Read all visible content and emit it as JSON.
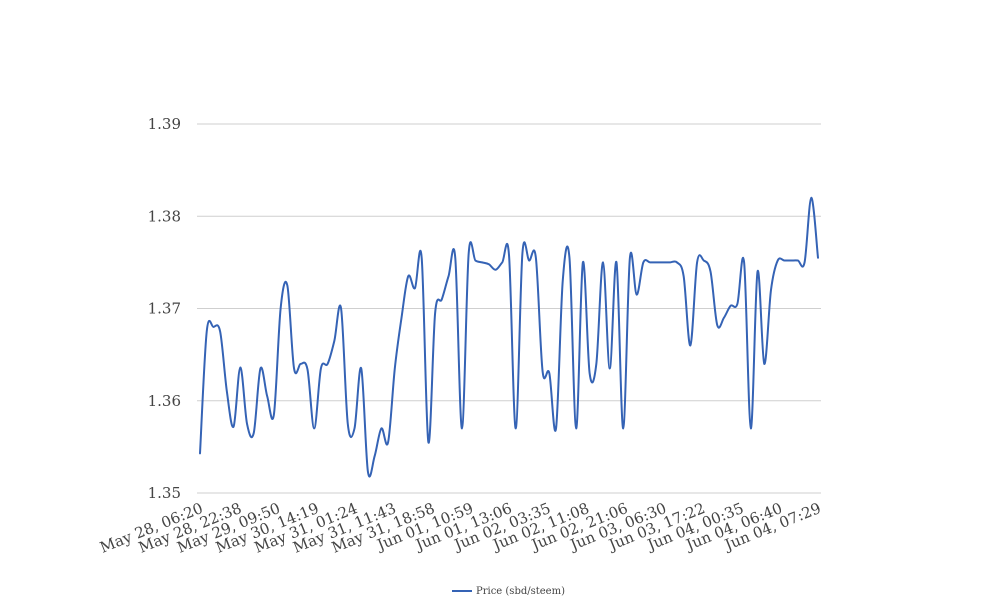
{
  "chart_data": {
    "type": "line",
    "title": "",
    "xlabel": "",
    "ylabel": "",
    "ylim": [
      1.35,
      1.39
    ],
    "y_ticks": [
      "1.35",
      "1.36",
      "1.37",
      "1.38",
      "1.39"
    ],
    "y_tick_values": [
      1.35,
      1.36,
      1.37,
      1.38,
      1.39
    ],
    "x_tick_labels": [
      "May 28, 06:20",
      "May 28, 22:38",
      "May 29, 09:50",
      "May 30, 14:19",
      "May 31, 01:24",
      "May 31, 11:43",
      "May 31, 18:58",
      "Jun 01, 10:59",
      "Jun 01, 13:06",
      "Jun 02, 03:35",
      "Jun 02, 11:08",
      "Jun 02, 21:06",
      "Jun 03, 06:30",
      "Jun 03, 17:22",
      "Jun 04, 00:35",
      "Jun 04, 06:40",
      "Jun 04, 07:29"
    ],
    "grid": true,
    "legend_position": "bottom",
    "colors": {
      "line": "#3563b5",
      "grid": "#cfcfcf",
      "text": "#444444"
    },
    "series": [
      {
        "name": "Price (sbd/steem)",
        "values": [
          1.3543,
          1.3675,
          1.368,
          1.3675,
          1.361,
          1.3572,
          1.3636,
          1.3575,
          1.3565,
          1.3635,
          1.3605,
          1.3585,
          1.37,
          1.3725,
          1.3635,
          1.364,
          1.3634,
          1.357,
          1.3635,
          1.364,
          1.3665,
          1.37,
          1.3575,
          1.357,
          1.3635,
          1.3523,
          1.354,
          1.357,
          1.3555,
          1.3635,
          1.369,
          1.3735,
          1.3722,
          1.3755,
          1.3555,
          1.3695,
          1.371,
          1.3735,
          1.3755,
          1.357,
          1.376,
          1.3752,
          1.375,
          1.3748,
          1.3742,
          1.375,
          1.3758,
          1.357,
          1.376,
          1.3752,
          1.3755,
          1.3632,
          1.363,
          1.357,
          1.373,
          1.3755,
          1.357,
          1.375,
          1.363,
          1.364,
          1.375,
          1.3635,
          1.375,
          1.357,
          1.3755,
          1.3715,
          1.375,
          1.375,
          1.375,
          1.375,
          1.375,
          1.375,
          1.3735,
          1.366,
          1.375,
          1.3752,
          1.374,
          1.3682,
          1.369,
          1.3703,
          1.3705,
          1.375,
          1.357,
          1.374,
          1.364,
          1.372,
          1.3752,
          1.3752,
          1.3752,
          1.3752,
          1.375,
          1.382,
          1.3755
        ]
      }
    ]
  }
}
